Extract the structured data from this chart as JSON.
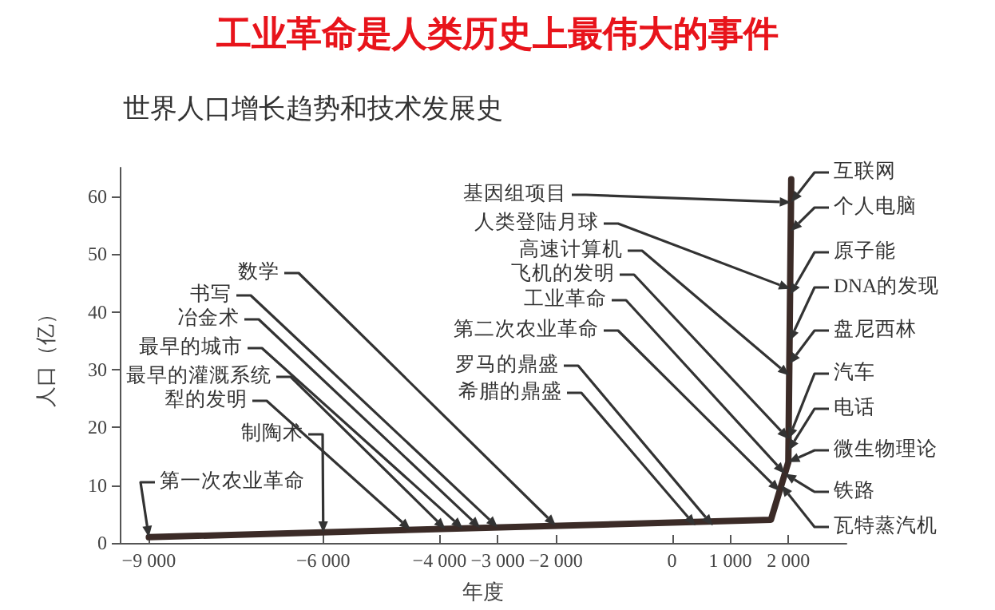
{
  "chart_data": {
    "type": "line",
    "title": "工业革命是人类历史上最伟大的事件",
    "subtitle": "世界人口增长趋势和技术发展史",
    "xlabel": "年度",
    "ylabel": "人口（亿）",
    "x": [
      -9000,
      1700,
      2000,
      2050
    ],
    "values": [
      1,
      4,
      14,
      63
    ],
    "color": "#3b2b27",
    "marker": "none",
    "line_style": "solid",
    "grid": false,
    "xlim": [
      -9500,
      3000
    ],
    "xticks": [
      {
        "value": -9000,
        "label": "−9 000"
      },
      {
        "value": -6000,
        "label": "−6 000"
      },
      {
        "value": -4000,
        "label": "−4 000"
      },
      {
        "value": -3000,
        "label": "−3 000"
      },
      {
        "value": -2000,
        "label": "−2 000"
      },
      0,
      {
        "value": 1000,
        "label": "1 000"
      },
      {
        "value": 2000,
        "label": "2 000"
      }
    ],
    "ylim": [
      0,
      65
    ],
    "yticks": [
      0,
      10,
      20,
      30,
      40,
      50,
      60
    ],
    "annotations": [
      {
        "text": "数学",
        "x": -2000,
        "y": 3
      },
      {
        "text": "书写",
        "x": -3000,
        "y": 2.7
      },
      {
        "text": "冶金术",
        "x": -3300,
        "y": 2.6
      },
      {
        "text": "最早的城市",
        "x": -3600,
        "y": 2.5
      },
      {
        "text": "最早的灌溉系统",
        "x": -3900,
        "y": 2.4
      },
      {
        "text": "犁的发明",
        "x": -4500,
        "y": 2.3
      },
      {
        "text": "制陶术",
        "x": -6000,
        "y": 1.8
      },
      {
        "text": "第一次农业革命",
        "x": -9000,
        "y": 1
      },
      {
        "text": "基因组项目",
        "x": 2046,
        "y": 59
      },
      {
        "text": "人类登陆月球",
        "x": 2031,
        "y": 44
      },
      {
        "text": "高速计算机",
        "x": 2015,
        "y": 29
      },
      {
        "text": "飞机的发明",
        "x": 2004,
        "y": 18
      },
      {
        "text": "工业革命",
        "x": 1940,
        "y": 12
      },
      {
        "text": "第二次农业革命",
        "x": 1850,
        "y": 9
      },
      {
        "text": "罗马的鼎盛",
        "x": 700,
        "y": 3
      },
      {
        "text": "希腊的鼎盛",
        "x": 400,
        "y": 3
      },
      {
        "text": "互联网",
        "x": 2046,
        "y": 59
      },
      {
        "text": "个人电脑",
        "x": 2041,
        "y": 54
      },
      {
        "text": "原子能",
        "x": 2030,
        "y": 43
      },
      {
        "text": "DNA的发现",
        "x": 2021,
        "y": 35
      },
      {
        "text": "盘尼西林",
        "x": 2017,
        "y": 31
      },
      {
        "text": "汽车",
        "x": 2004,
        "y": 18
      },
      {
        "text": "电话",
        "x": 2002,
        "y": 16
      },
      {
        "text": "微生物理论",
        "x": 2000,
        "y": 14
      },
      {
        "text": "铁路",
        "x": 1940,
        "y": 12
      },
      {
        "text": "瓦特蒸汽机",
        "x": 1880,
        "y": 10
      }
    ]
  }
}
